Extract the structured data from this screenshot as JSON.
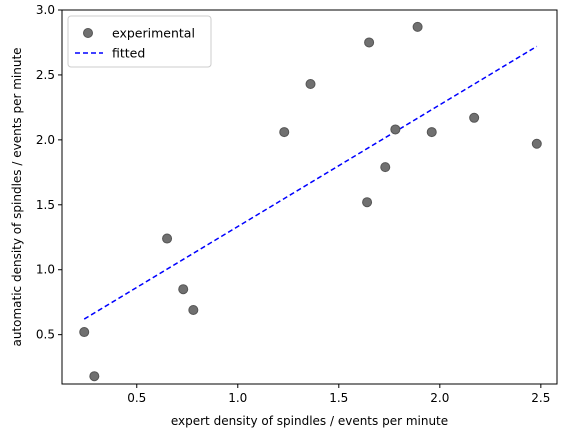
{
  "chart_data": {
    "type": "scatter",
    "xlabel": "expert density of spindles / events per minute",
    "ylabel": "automatic density of spindles / events per minute",
    "xlim": [
      0.13,
      2.58
    ],
    "ylim": [
      0.12,
      3.0
    ],
    "x_ticks": [
      0.5,
      1.0,
      1.5,
      2.0,
      2.5
    ],
    "x_tick_labels": [
      "0.5",
      "1.0",
      "1.5",
      "2.0",
      "2.5"
    ],
    "y_ticks": [
      0.5,
      1.0,
      1.5,
      2.0,
      2.5,
      3.0
    ],
    "y_tick_labels": [
      "0.5",
      "1.0",
      "1.5",
      "2.0",
      "2.5",
      "3.0"
    ],
    "grid": false,
    "legend_position": "top-left",
    "series": [
      {
        "name": "experimental",
        "kind": "scatter",
        "color": "#707070",
        "points": [
          {
            "x": 0.24,
            "y": 0.52
          },
          {
            "x": 0.29,
            "y": 0.18
          },
          {
            "x": 0.65,
            "y": 1.24
          },
          {
            "x": 0.73,
            "y": 0.85
          },
          {
            "x": 0.78,
            "y": 0.69
          },
          {
            "x": 1.23,
            "y": 2.06
          },
          {
            "x": 1.36,
            "y": 2.43
          },
          {
            "x": 1.64,
            "y": 1.52
          },
          {
            "x": 1.65,
            "y": 2.75
          },
          {
            "x": 1.73,
            "y": 1.79
          },
          {
            "x": 1.78,
            "y": 2.08
          },
          {
            "x": 1.89,
            "y": 2.87
          },
          {
            "x": 1.96,
            "y": 2.06
          },
          {
            "x": 2.17,
            "y": 2.17
          },
          {
            "x": 2.48,
            "y": 1.97
          }
        ]
      },
      {
        "name": "fitted",
        "kind": "line",
        "style": "dashed",
        "color": "#0000ff",
        "points": [
          {
            "x": 0.24,
            "y": 0.62
          },
          {
            "x": 2.48,
            "y": 2.72
          }
        ]
      }
    ]
  }
}
